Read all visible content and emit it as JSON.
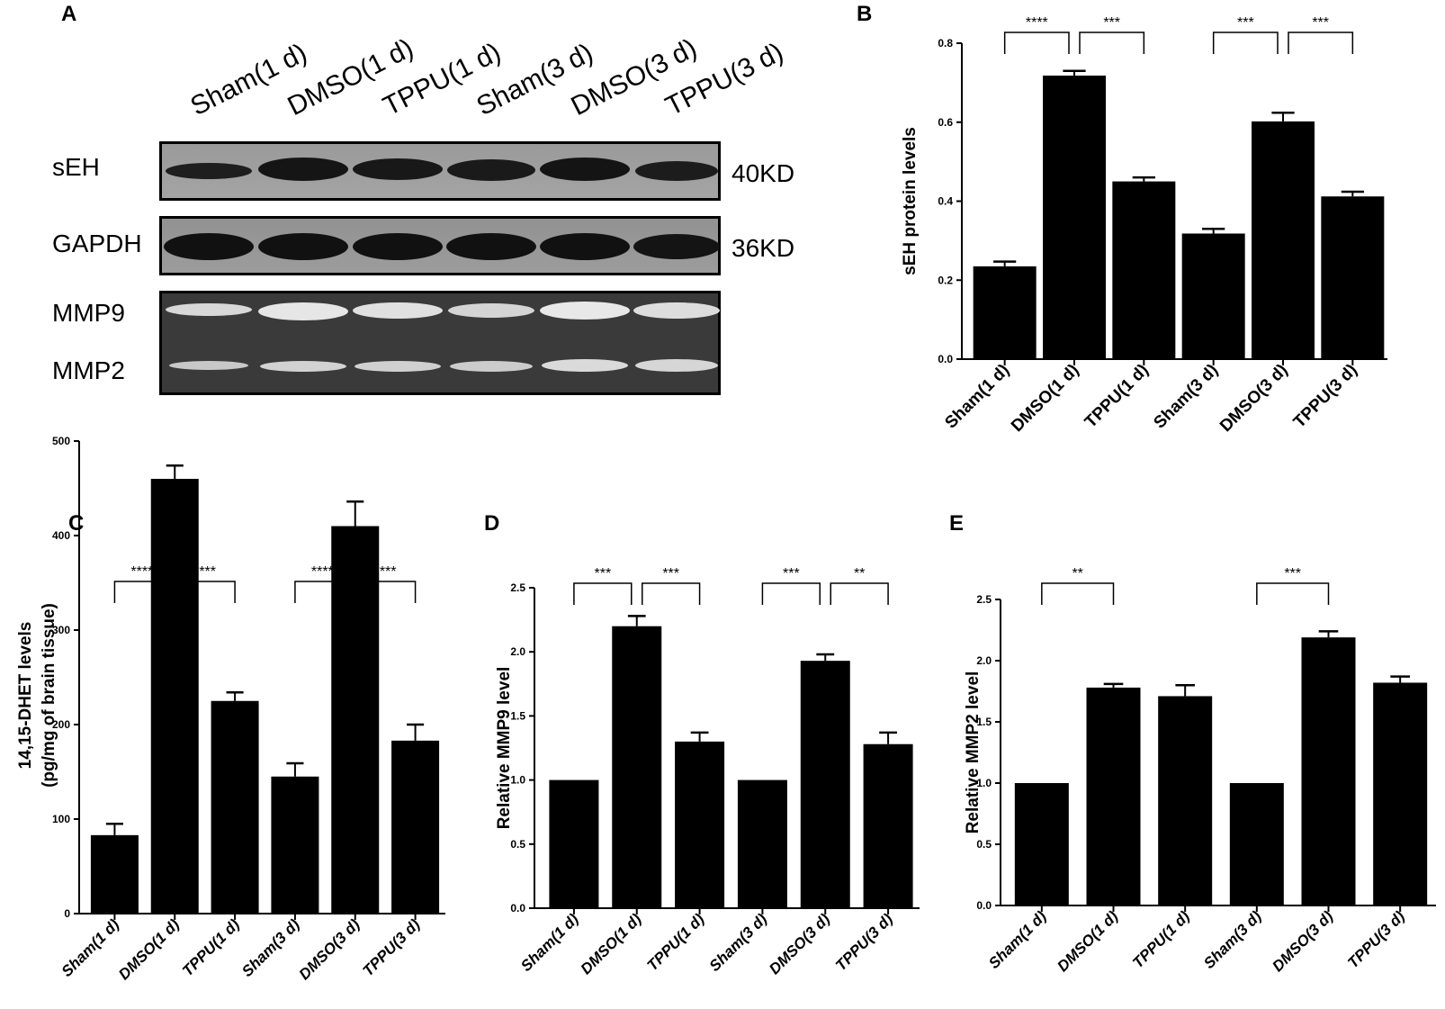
{
  "panels": {
    "A": "A",
    "B": "B",
    "C": "C",
    "D": "D",
    "E": "E"
  },
  "western_blot": {
    "lanes": [
      "Sham(1 d)",
      "DMSO(1 d)",
      "TPPU(1 d)",
      "Sham(3 d)",
      "DMSO(3 d)",
      "TPPU(3 d)"
    ],
    "rows": [
      {
        "label": "sEH",
        "size": "40KD"
      },
      {
        "label": "GAPDH",
        "size": "36KD"
      }
    ],
    "zymo_rows": [
      "MMP9",
      "MMP2"
    ]
  },
  "chart_data": [
    {
      "panel": "B",
      "type": "bar",
      "categories": [
        "Sham(1 d)",
        "DMSO(1 d)",
        "TPPU(1 d)",
        "Sham(3 d)",
        "DMSO(3 d)",
        "TPPU(3 d)"
      ],
      "values": [
        0.235,
        0.718,
        0.45,
        0.318,
        0.602,
        0.412
      ],
      "errors": [
        0.012,
        0.012,
        0.01,
        0.012,
        0.022,
        0.012
      ],
      "ylabel": "sEH protein levels",
      "ylim": [
        0,
        0.8
      ],
      "yticks": [
        "0.0",
        "0.2",
        "0.4",
        "0.6",
        "0.8"
      ],
      "significance": [
        {
          "from": 0,
          "to": 1,
          "label": "****"
        },
        {
          "from": 1,
          "to": 2,
          "label": "***"
        },
        {
          "from": 3,
          "to": 4,
          "label": "***"
        },
        {
          "from": 4,
          "to": 5,
          "label": "***"
        }
      ]
    },
    {
      "panel": "C",
      "type": "bar",
      "categories": [
        "Sham(1 d)",
        "DMSO(1 d)",
        "TPPU(1 d)",
        "Sham(3 d)",
        "DMSO(3 d)",
        "TPPU(3 d)"
      ],
      "values": [
        83,
        460,
        225,
        145,
        410,
        183
      ],
      "errors": [
        12,
        14,
        9,
        14,
        26,
        17
      ],
      "ylabel": "14,15-DHET levels",
      "ylabel2": "(pg/mg of brain tissue)",
      "ylim": [
        0,
        500
      ],
      "yticks": [
        "0",
        "100",
        "200",
        "300",
        "400",
        "500"
      ],
      "significance": [
        {
          "from": 0,
          "to": 1,
          "label": "****"
        },
        {
          "from": 1,
          "to": 2,
          "label": "***"
        },
        {
          "from": 3,
          "to": 4,
          "label": "****"
        },
        {
          "from": 4,
          "to": 5,
          "label": "***"
        }
      ]
    },
    {
      "panel": "D",
      "type": "bar",
      "categories": [
        "Sham(1 d)",
        "DMSO(1 d)",
        "TPPU(1 d)",
        "Sham(3 d)",
        "DMSO(3 d)",
        "TPPU(3 d)"
      ],
      "values": [
        1.0,
        2.2,
        1.3,
        1.0,
        1.93,
        1.28
      ],
      "errors": [
        0,
        0.08,
        0.07,
        0,
        0.05,
        0.09
      ],
      "ylabel": "Relative MMP9 level",
      "ylim": [
        0,
        2.5
      ],
      "yticks": [
        "0.0",
        "0.5",
        "1.0",
        "1.5",
        "2.0",
        "2.5"
      ],
      "significance": [
        {
          "from": 0,
          "to": 1,
          "label": "***"
        },
        {
          "from": 1,
          "to": 2,
          "label": "***"
        },
        {
          "from": 3,
          "to": 4,
          "label": "***"
        },
        {
          "from": 4,
          "to": 5,
          "label": "**"
        }
      ]
    },
    {
      "panel": "E",
      "type": "bar",
      "categories": [
        "Sham(1 d)",
        "DMSO(1 d)",
        "TPPU(1 d)",
        "Sham(3 d)",
        "DMSO(3 d)",
        "TPPU(3 d)"
      ],
      "values": [
        1.0,
        1.78,
        1.71,
        1.0,
        2.19,
        1.82
      ],
      "errors": [
        0,
        0.03,
        0.09,
        0,
        0.05,
        0.05
      ],
      "ylabel": "Relative MMP2 level",
      "ylim": [
        0,
        2.5
      ],
      "yticks": [
        "0.0",
        "0.5",
        "1.0",
        "1.5",
        "2.0",
        "2.5"
      ],
      "significance": [
        {
          "from": 0,
          "to": 1,
          "label": "**"
        },
        {
          "from": 3,
          "to": 4,
          "label": "***"
        }
      ]
    }
  ]
}
